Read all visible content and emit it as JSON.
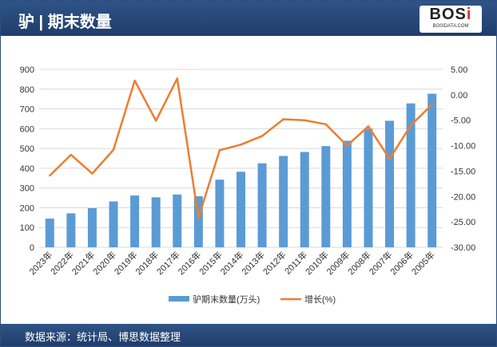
{
  "header": {
    "title": "驴 | 期末数量",
    "logo": "BOSi",
    "logo_sub": "BOSIDATA.COM"
  },
  "footer": {
    "source": "数据来源：统计局、博思数据整理"
  },
  "chart_data": {
    "type": "bar+line",
    "categories": [
      "2023年",
      "2022年",
      "2021年",
      "2020年",
      "2019年",
      "2018年",
      "2017年",
      "2016年",
      "2015年",
      "2014年",
      "2013年",
      "2012年",
      "2011年",
      "2010年",
      "2009年",
      "2008年",
      "2007年",
      "2006年",
      "2005年"
    ],
    "series": [
      {
        "name": "驴期末数量(万头)",
        "type": "bar",
        "axis": "left",
        "color": "#5b9bd5",
        "values": [
          145,
          172,
          198,
          232,
          262,
          253,
          267,
          258,
          342,
          382,
          425,
          462,
          482,
          512,
          539,
          600,
          640,
          728,
          777
        ]
      },
      {
        "name": "增长(%)",
        "type": "line",
        "axis": "right",
        "color": "#ed7d31",
        "values": [
          -15.9,
          -11.8,
          -15.5,
          -10.8,
          2.8,
          -5.1,
          3.2,
          -24.2,
          -10.9,
          -9.8,
          -8.1,
          -4.8,
          -5.0,
          -5.8,
          -10.0,
          -6.2,
          -12.6,
          -6.0,
          -1.9
        ]
      }
    ],
    "y_left": {
      "range": [
        0,
        900
      ],
      "ticks": [
        "0",
        "100",
        "200",
        "300",
        "400",
        "500",
        "600",
        "700",
        "800",
        "900"
      ]
    },
    "y_right": {
      "range": [
        -30,
        5
      ],
      "ticks": [
        "-30.00",
        "-25.00",
        "-20.00",
        "-15.00",
        "-10.00",
        "-5.00",
        "0.00",
        "5.00"
      ]
    },
    "grid": true,
    "legend": "bottom"
  }
}
